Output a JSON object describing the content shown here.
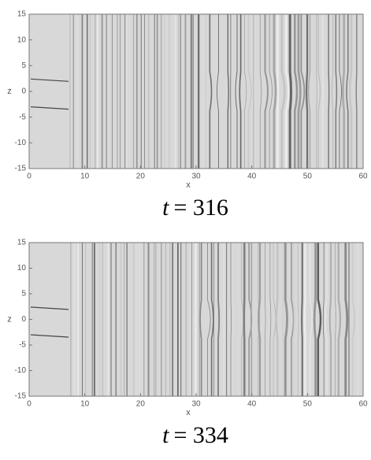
{
  "panels": [
    {
      "xlabel": "x",
      "ylabel": "z",
      "xticks": [
        0,
        10,
        20,
        30,
        40,
        50,
        60
      ],
      "yticks": [
        -15,
        -10,
        -5,
        0,
        5,
        10,
        15
      ],
      "xlim": [
        0,
        60
      ],
      "ylim": [
        -15,
        15
      ],
      "symbol": "t",
      "relation": "= 316"
    },
    {
      "xlabel": "x",
      "ylabel": "z",
      "xticks": [
        0,
        10,
        20,
        30,
        40,
        50,
        60
      ],
      "yticks": [
        -15,
        -10,
        -5,
        0,
        5,
        10,
        15
      ],
      "xlim": [
        0,
        60
      ],
      "ylim": [
        -15,
        15
      ],
      "symbol": "t",
      "relation": "= 334"
    }
  ]
}
